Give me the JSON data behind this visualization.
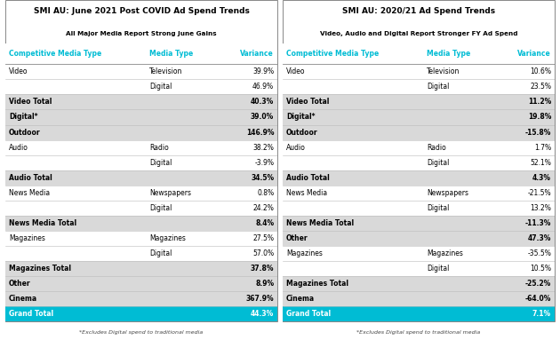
{
  "table1": {
    "title": "SMI AU: June 2021 Post COVID Ad Spend Trends",
    "subtitle": "All Major Media Report Strong June Gains",
    "footnote": "*Excludes Digital spend to traditional media",
    "rows": [
      {
        "col1": "Competitive Media Type",
        "col2": "Media Type",
        "col3": "Variance",
        "type": "header"
      },
      {
        "col1": "Video",
        "col2": "Television",
        "col3": "39.9%",
        "type": "normal"
      },
      {
        "col1": "",
        "col2": "Digital",
        "col3": "46.9%",
        "type": "normal"
      },
      {
        "col1": "Video Total",
        "col2": "",
        "col3": "40.3%",
        "type": "subtotal"
      },
      {
        "col1": "Digital*",
        "col2": "",
        "col3": "39.0%",
        "type": "subtotal"
      },
      {
        "col1": "Outdoor",
        "col2": "",
        "col3": "146.9%",
        "type": "subtotal"
      },
      {
        "col1": "Audio",
        "col2": "Radio",
        "col3": "38.2%",
        "type": "normal"
      },
      {
        "col1": "",
        "col2": "Digital",
        "col3": "-3.9%",
        "type": "normal"
      },
      {
        "col1": "Audio Total",
        "col2": "",
        "col3": "34.5%",
        "type": "subtotal"
      },
      {
        "col1": "News Media",
        "col2": "Newspapers",
        "col3": "0.8%",
        "type": "normal"
      },
      {
        "col1": "",
        "col2": "Digital",
        "col3": "24.2%",
        "type": "normal"
      },
      {
        "col1": "News Media Total",
        "col2": "",
        "col3": "8.4%",
        "type": "subtotal"
      },
      {
        "col1": "Magazines",
        "col2": "Magazines",
        "col3": "27.5%",
        "type": "normal"
      },
      {
        "col1": "",
        "col2": "Digital",
        "col3": "57.0%",
        "type": "normal"
      },
      {
        "col1": "Magazines Total",
        "col2": "",
        "col3": "37.8%",
        "type": "subtotal"
      },
      {
        "col1": "Other",
        "col2": "",
        "col3": "8.9%",
        "type": "subtotal"
      },
      {
        "col1": "Cinema",
        "col2": "",
        "col3": "367.9%",
        "type": "subtotal"
      },
      {
        "col1": "Grand Total",
        "col2": "",
        "col3": "44.3%",
        "type": "grand_total"
      }
    ]
  },
  "table2": {
    "title": "SMI AU: 2020/21 Ad Spend Trends",
    "subtitle": "Video, Audio and Digital Report Stronger FY Ad Spend",
    "footnote": "*Excludes Digital spend to traditional media",
    "rows": [
      {
        "col1": "Competitive Media Type",
        "col2": "Media Type",
        "col3": "Variance",
        "type": "header"
      },
      {
        "col1": "Video",
        "col2": "Television",
        "col3": "10.6%",
        "type": "normal"
      },
      {
        "col1": "",
        "col2": "Digital",
        "col3": "23.5%",
        "type": "normal"
      },
      {
        "col1": "Video Total",
        "col2": "",
        "col3": "11.2%",
        "type": "subtotal"
      },
      {
        "col1": "Digital*",
        "col2": "",
        "col3": "19.8%",
        "type": "subtotal"
      },
      {
        "col1": "Outdoor",
        "col2": "",
        "col3": "-15.8%",
        "type": "subtotal"
      },
      {
        "col1": "Audio",
        "col2": "Radio",
        "col3": "1.7%",
        "type": "normal"
      },
      {
        "col1": "",
        "col2": "Digital",
        "col3": "52.1%",
        "type": "normal"
      },
      {
        "col1": "Audio Total",
        "col2": "",
        "col3": "4.3%",
        "type": "subtotal"
      },
      {
        "col1": "News Media",
        "col2": "Newspapers",
        "col3": "-21.5%",
        "type": "normal"
      },
      {
        "col1": "",
        "col2": "Digital",
        "col3": "13.2%",
        "type": "normal"
      },
      {
        "col1": "News Media Total",
        "col2": "",
        "col3": "-11.3%",
        "type": "subtotal"
      },
      {
        "col1": "Other",
        "col2": "",
        "col3": "47.3%",
        "type": "subtotal"
      },
      {
        "col1": "Magazines",
        "col2": "Magazines",
        "col3": "-35.5%",
        "type": "normal"
      },
      {
        "col1": "",
        "col2": "Digital",
        "col3": "10.5%",
        "type": "normal"
      },
      {
        "col1": "Magazines Total",
        "col2": "",
        "col3": "-25.2%",
        "type": "subtotal"
      },
      {
        "col1": "Cinema",
        "col2": "",
        "col3": "-64.0%",
        "type": "subtotal"
      },
      {
        "col1": "Grand Total",
        "col2": "",
        "col3": "7.1%",
        "type": "grand_total"
      }
    ]
  },
  "colors": {
    "header_text": "#00bcd4",
    "grand_total_bg": "#00bcd4",
    "grand_total_text": "#ffffff",
    "subtotal_bg": "#d9d9d9",
    "normal_bg": "#ffffff",
    "title_color": "#000000",
    "border_color": "#888888",
    "header_bg": "#ffffff",
    "line_color": "#bbbbbb"
  },
  "layout": {
    "fig_width": 6.3,
    "fig_height": 3.83,
    "dpi": 100,
    "title_fs": 6.5,
    "subtitle_fs": 5.2,
    "header_fs": 5.5,
    "data_fs": 5.5,
    "footnote_fs": 4.5
  }
}
